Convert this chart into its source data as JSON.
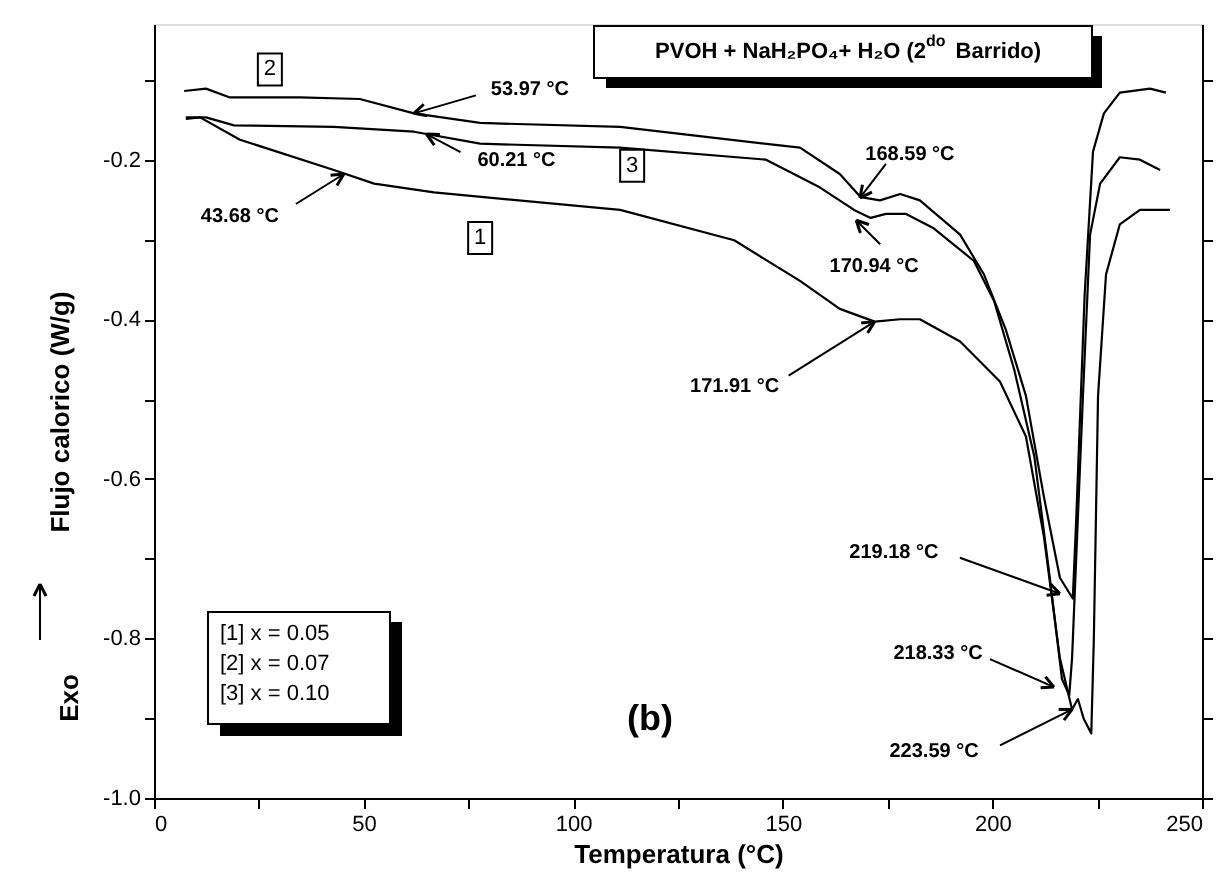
{
  "chart_data": {
    "type": "line",
    "title": "PVOH + NaH₂PO₄+ H₂O (2$^{do}$ Barrido)",
    "xlabel": "Temperatura (°C)",
    "ylabel": "Flujo calorico  (W/g)",
    "xlim": [
      0,
      250
    ],
    "ylim": [
      -1.0,
      -0.03
    ],
    "xticks": [
      0,
      {
        "value": 25,
        "label": null
      },
      50,
      {
        "value": 75,
        "label": null
      },
      100,
      {
        "value": 125,
        "label": null
      },
      150,
      {
        "value": 175,
        "label": null
      },
      200,
      {
        "value": 225,
        "label": null
      },
      250
    ],
    "yticks": [
      {
        "value": -1.0,
        "label": "-1.0"
      },
      {
        "value": -0.9,
        "label": null
      },
      -0.8,
      {
        "value": -0.7,
        "label": null
      },
      -0.6,
      {
        "value": -0.5,
        "label": null
      },
      -0.4,
      {
        "value": -0.3,
        "label": null
      },
      -0.2,
      {
        "value": -0.1,
        "label": null
      }
    ],
    "grid": false,
    "marker": "none",
    "line_style": "solid",
    "series": [
      {
        "name": "1",
        "color": "#000000",
        "x": [
          7.6,
          11,
          20.5,
          42.9,
          52.5,
          66.8,
          111.2,
          138.4,
          154.1,
          163.6,
          171.9,
          178,
          182.7,
          192.3,
          201.8,
          208,
          212.3,
          216.1,
          219,
          220.4,
          221.8,
          223.59,
          224.2,
          225.2,
          227.1,
          230.4,
          235.2,
          242.4
        ],
        "values": [
          -0.149,
          -0.147,
          -0.175,
          -0.213,
          -0.23,
          -0.241,
          -0.263,
          -0.301,
          -0.352,
          -0.387,
          -0.403,
          -0.4,
          -0.4,
          -0.428,
          -0.478,
          -0.547,
          -0.673,
          -0.825,
          -0.889,
          -0.876,
          -0.901,
          -0.919,
          -0.8,
          -0.496,
          -0.344,
          -0.281,
          -0.263,
          -0.263
        ]
      },
      {
        "name": "2",
        "color": "#000000",
        "x": [
          7.2,
          12.4,
          18.1,
          34.8,
          49.1,
          62,
          77.8,
          111.2,
          154.1,
          163.6,
          168.59,
          173.2,
          178,
          182.7,
          192.3,
          198,
          203.2,
          208,
          212.3,
          216.1,
          219.18,
          220,
          222,
          224,
          226.6,
          230.4,
          237.6,
          241.4
        ],
        "values": [
          -0.114,
          -0.111,
          -0.122,
          -0.122,
          -0.124,
          -0.142,
          -0.154,
          -0.159,
          -0.185,
          -0.218,
          -0.247,
          -0.251,
          -0.243,
          -0.251,
          -0.294,
          -0.344,
          -0.413,
          -0.496,
          -0.623,
          -0.724,
          -0.75,
          -0.65,
          -0.37,
          -0.19,
          -0.142,
          -0.116,
          -0.111,
          -0.116
        ]
      },
      {
        "name": "3",
        "color": "#000000",
        "x": [
          7.6,
          12.4,
          19.1,
          42.9,
          62,
          77.8,
          111.2,
          146,
          158.9,
          167,
          170.94,
          174.6,
          179.4,
          186,
          195.6,
          200.4,
          205.2,
          210,
          213.7,
          216.6,
          218.33,
          219,
          221.6,
          223.3,
          225.7,
          230.4,
          235.2,
          240
        ],
        "values": [
          -0.147,
          -0.147,
          -0.157,
          -0.159,
          -0.165,
          -0.18,
          -0.185,
          -0.2,
          -0.235,
          -0.263,
          -0.273,
          -0.268,
          -0.268,
          -0.286,
          -0.327,
          -0.377,
          -0.463,
          -0.572,
          -0.724,
          -0.851,
          -0.871,
          -0.825,
          -0.496,
          -0.294,
          -0.23,
          -0.197,
          -0.2,
          -0.213
        ]
      }
    ],
    "annotations": [
      {
        "text": "53.97 °C",
        "x": 62,
        "y": -0.142
      },
      {
        "text": "60.21 °C",
        "x": 65,
        "y": -0.168
      },
      {
        "text": "43.68 °C",
        "x": 45.3,
        "y": -0.218
      },
      {
        "text": "168.59 °C",
        "x": 168.4,
        "y": -0.248
      },
      {
        "text": "170.94 °C",
        "x": 167.5,
        "y": -0.276
      },
      {
        "text": "171.91 °C",
        "x": 171.9,
        "y": -0.403
      },
      {
        "text": "219.18 °C",
        "x": 216.1,
        "y": -0.744
      },
      {
        "text": "218.33 °C",
        "x": 214.7,
        "y": -0.861
      },
      {
        "text": "223.59 °C",
        "x": 219,
        "y": -0.889
      },
      "[1]  x = 0.05",
      "[2]  x = 0.07",
      "[3]  x = 0.10",
      "(b)",
      "Exo"
    ]
  }
}
